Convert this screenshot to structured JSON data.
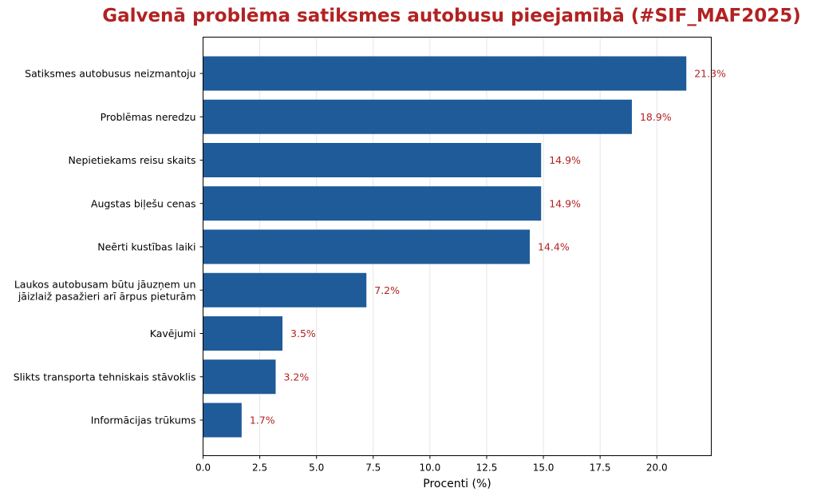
{
  "chart_data": {
    "type": "bar",
    "orientation": "horizontal",
    "title": "Galvenā problēma satiksmes autobusu pieejamībā (#SIF_MAF2025)",
    "xlabel": "Procenti (%)",
    "ylabel": "",
    "xlim": [
      0,
      22.4
    ],
    "xticks": [
      "0.0",
      "2.5",
      "5.0",
      "7.5",
      "10.0",
      "12.5",
      "15.0",
      "17.5",
      "20.0"
    ],
    "grid": "vertical",
    "categories": [
      [
        "Satiksmes autobusus neizmantoju"
      ],
      [
        "Problēmas neredzu"
      ],
      [
        "Nepietiekams reisu skaits"
      ],
      [
        "Augstas biļešu cenas"
      ],
      [
        "Neērti kustības laiki"
      ],
      [
        "Laukos autobusam būtu jāuzņem un",
        "jāizlaiž pasažieri arī ārpus pieturām"
      ],
      [
        "Kavējumi"
      ],
      [
        "Slikts transporta tehniskais stāvoklis"
      ],
      [
        "Informācijas trūkums"
      ]
    ],
    "values": [
      21.3,
      18.9,
      14.9,
      14.9,
      14.4,
      7.2,
      3.5,
      3.2,
      1.7
    ],
    "value_labels": [
      "21.3%",
      "18.9%",
      "14.9%",
      "14.9%",
      "14.4%",
      "7.2%",
      "3.5%",
      "3.2%",
      "1.7%"
    ],
    "colors": {
      "bar": "#1f5b99",
      "title": "#b22222",
      "value_label": "#b22222",
      "grid": "#e6e6e6"
    }
  }
}
